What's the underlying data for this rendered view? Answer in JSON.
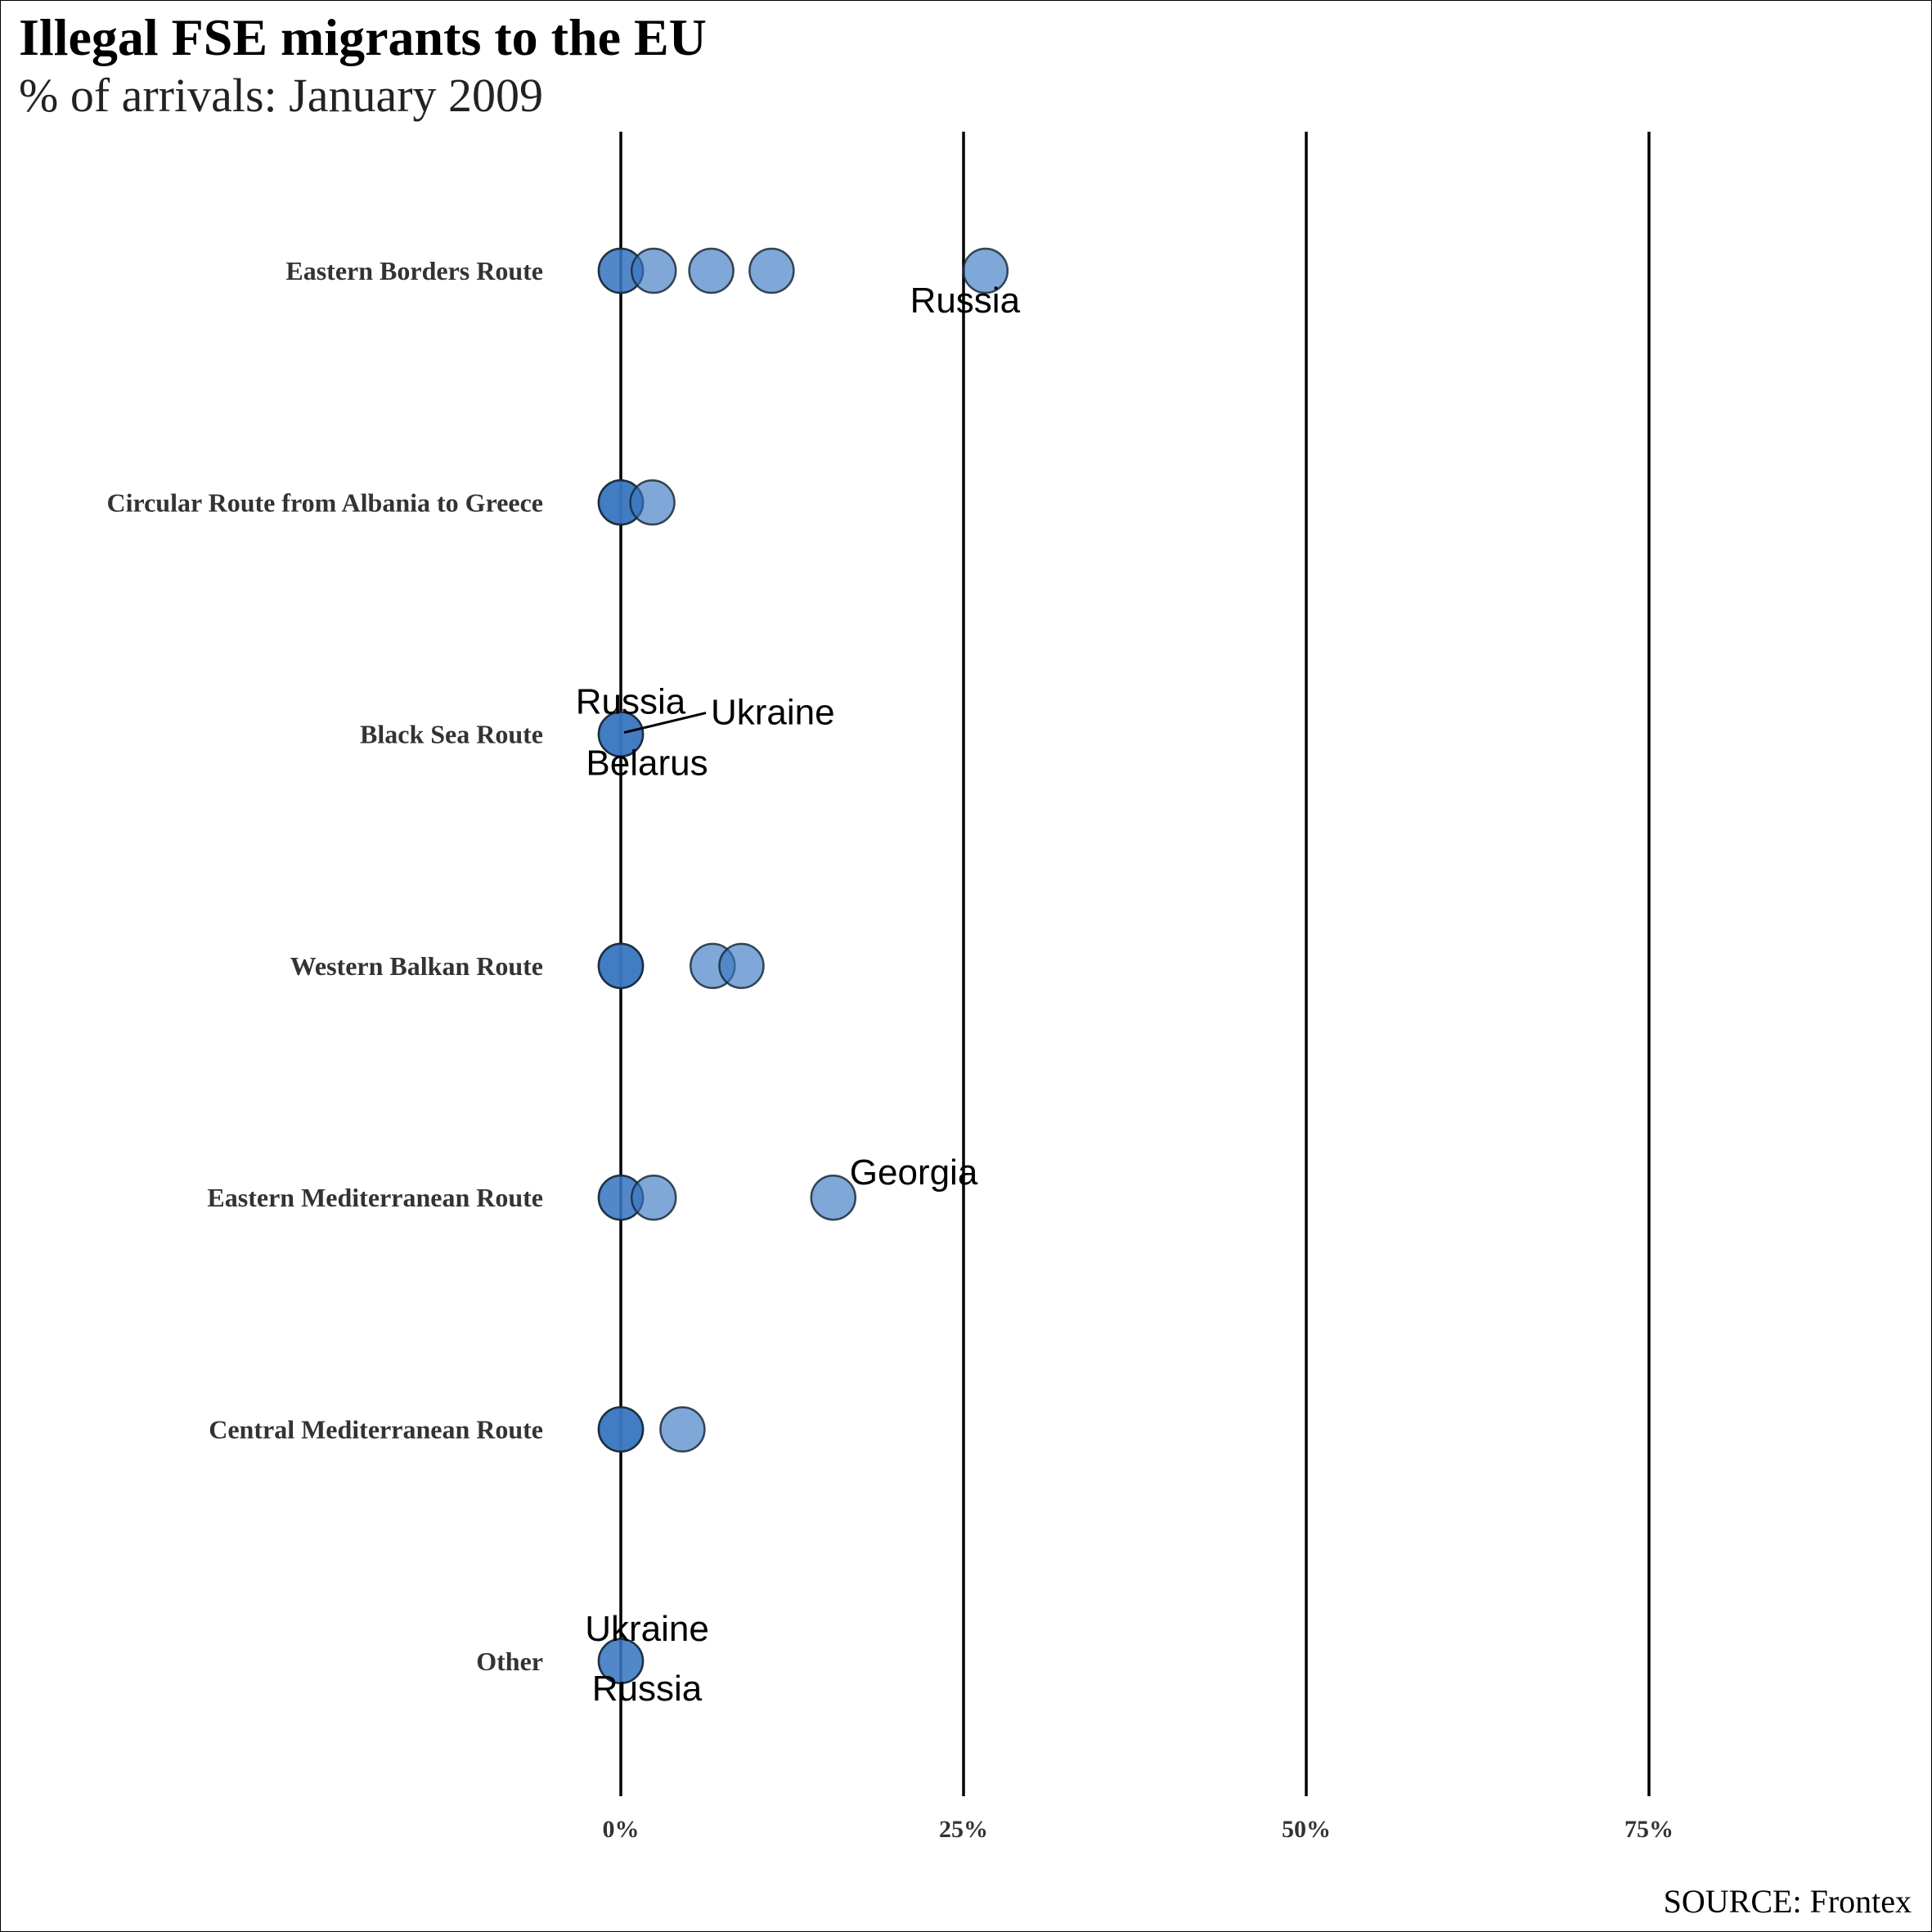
{
  "header": {
    "title": "Illegal FSE migrants to the EU",
    "subtitle": "% of arrivals: January 2009"
  },
  "footer": {
    "source": "SOURCE: Frontex"
  },
  "colors": {
    "point_fill": "#3a78c2",
    "point_stroke": "#1a2a3a",
    "gridline": "#000000"
  },
  "chart_data": {
    "type": "scatter",
    "title": "Illegal FSE migrants to the EU",
    "subtitle": "% of arrivals: January 2009",
    "xlabel": "",
    "ylabel": "",
    "xlim": [
      -0.19,
      0.95
    ],
    "x_ticks": [
      0,
      0.25,
      0.5,
      0.75
    ],
    "x_tick_labels": [
      "0%",
      "25%",
      "50%",
      "75%"
    ],
    "grid": "vertical major lines only",
    "legend": "none",
    "categories": [
      "Eastern Borders Route",
      "Circular Route from Albania to Greece",
      "Black Sea Route",
      "Western Balkan Route",
      "Eastern Mediterranean Route",
      "Central Mediterranean Route",
      "Other"
    ],
    "series": [
      {
        "category": "Eastern Borders Route",
        "x": [
          0,
          0,
          0.024,
          0.066,
          0.11,
          0.266
        ],
        "labels": [
          {
            "text": "Russia",
            "x": 0.266
          }
        ]
      },
      {
        "category": "Circular Route from Albania to Greece",
        "x": [
          0,
          0,
          0,
          0.023
        ],
        "labels": []
      },
      {
        "category": "Black Sea Route",
        "x": [
          0,
          0,
          0
        ],
        "labels": [
          {
            "text": "Russia",
            "x": 0
          },
          {
            "text": "Ukraine",
            "x": 0
          },
          {
            "text": "Belarus",
            "x": 0
          }
        ]
      },
      {
        "category": "Western Balkan Route",
        "x": [
          0,
          0,
          0,
          0.067,
          0.088
        ],
        "labels": []
      },
      {
        "category": "Eastern Mediterranean Route",
        "x": [
          0,
          0,
          0.024,
          0.155
        ],
        "labels": [
          {
            "text": "Georgia",
            "x": 0.155
          }
        ]
      },
      {
        "category": "Central Mediterranean Route",
        "x": [
          0,
          0,
          0,
          0.045
        ],
        "labels": []
      },
      {
        "category": "Other",
        "x": [
          0,
          0
        ],
        "labels": [
          {
            "text": "Ukraine",
            "x": 0
          },
          {
            "text": "Russia",
            "x": 0
          }
        ]
      }
    ]
  }
}
